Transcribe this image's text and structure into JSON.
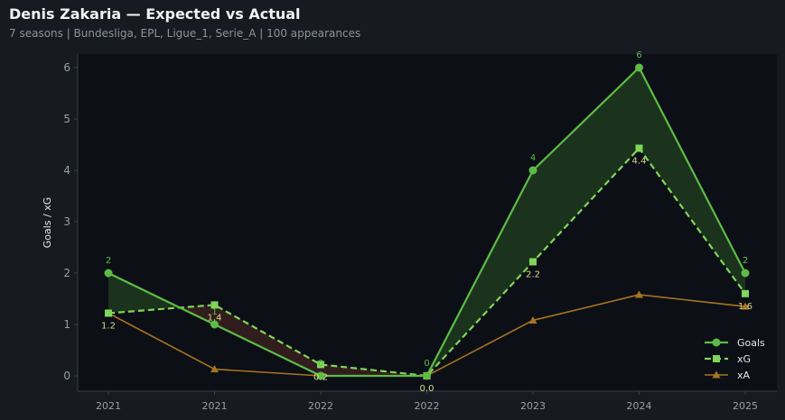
{
  "header": {
    "title": "Denis Zakaria — Expected vs Actual",
    "subtitle": "7 seasons | Bundesliga, EPL, Ligue_1, Serie_A | 100 appearances"
  },
  "colors": {
    "goals": "#5dbb46",
    "xg": "#7fd65a",
    "xa": "#a8741f",
    "over_fill": "#1e3a1e",
    "under_fill": "#3a2020",
    "plot_bg": "#0c0f16",
    "page_bg": "#171a21"
  },
  "chart_data": {
    "type": "line",
    "title": "Denis Zakaria — Expected vs Actual",
    "xlabel": "",
    "ylabel": "Goals / xG",
    "categories": [
      "2021",
      "2021",
      "2022",
      "2022",
      "2023",
      "2024",
      "2025"
    ],
    "ylim": [
      -0.3,
      6.3
    ],
    "yticks": [
      0,
      1,
      2,
      3,
      4,
      5,
      6
    ],
    "grid": false,
    "legend": "bottom-right",
    "series": [
      {
        "name": "Goals",
        "key": "goals",
        "values": [
          2,
          1,
          0,
          0,
          4,
          6,
          2
        ],
        "labels": [
          "2",
          "1",
          "0",
          "0",
          "4",
          "6",
          "2"
        ]
      },
      {
        "name": "xG",
        "key": "xg",
        "values": [
          1.22,
          1.38,
          0.22,
          0.0,
          2.22,
          4.43,
          1.6
        ],
        "labels": [
          "1.2",
          "1.4",
          "0.2",
          "0.0",
          "2.2",
          "4.4",
          "1.6"
        ]
      },
      {
        "name": "xA",
        "key": "xa",
        "values": [
          1.22,
          0.13,
          0.0,
          0.0,
          1.08,
          1.58,
          1.35
        ]
      }
    ]
  }
}
